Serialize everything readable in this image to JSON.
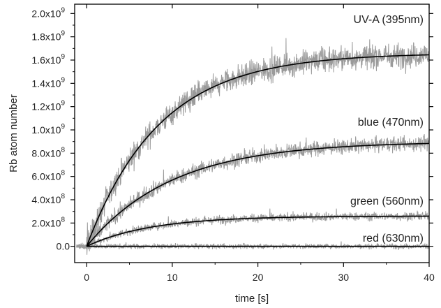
{
  "chart_data": {
    "type": "line",
    "xlabel": "time [s]",
    "ylabel": "Rb atom number",
    "xlim": [
      -1.4,
      40
    ],
    "ylim": [
      -140000000.0,
      2080000000.0
    ],
    "x_ticks": [
      0,
      10,
      20,
      30,
      40
    ],
    "x_tick_labels": [
      "0",
      "10",
      "20",
      "30",
      "40"
    ],
    "y_ticks": [
      0,
      200000000.0,
      400000000.0,
      600000000.0,
      800000000.0,
      1000000000.0,
      1200000000.0,
      1400000000.0,
      1600000000.0,
      1800000000.0,
      2000000000.0
    ],
    "y_tick_mantissas": [
      "0.0",
      "2.0x10",
      "4.0x10",
      "6.0x10",
      "8.0x10",
      "1.0x10",
      "1.2x10",
      "1.4x10",
      "1.6x10",
      "1.8x10",
      "2.0x10"
    ],
    "y_tick_exponents": [
      "",
      "8",
      "8",
      "8",
      "8",
      "9",
      "9",
      "9",
      "9",
      "9",
      "9"
    ],
    "grid": false,
    "colors": {
      "data": "#9a9a9a",
      "fit": "#000000",
      "axis": "#000000"
    },
    "series": [
      {
        "name": "UV-A (395nm)",
        "fit": {
          "saturation": 1660000000.0,
          "tau": 8.5
        },
        "noise": 75000000.0
      },
      {
        "name": "blue (470nm)",
        "fit": {
          "saturation": 900000000.0,
          "tau": 10.0
        },
        "noise": 45000000.0
      },
      {
        "name": "green (560nm)",
        "fit": {
          "saturation": 260000000.0,
          "tau": 7.5
        },
        "noise": 25000000.0
      },
      {
        "name": "red (630nm)",
        "fit": {
          "saturation": 0.0,
          "tau": 5.0
        },
        "noise": 15000000.0
      }
    ]
  }
}
